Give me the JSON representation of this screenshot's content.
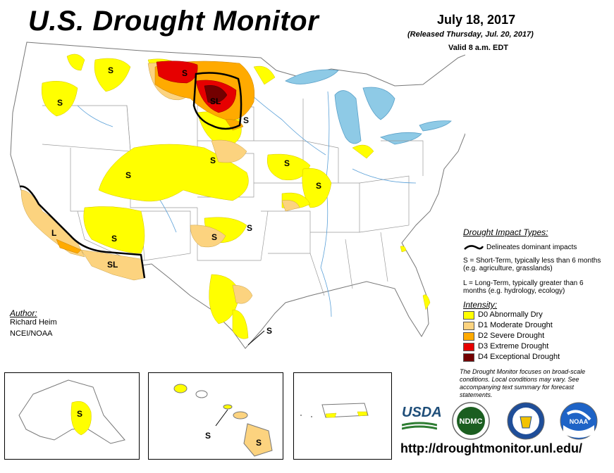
{
  "title": "U.S. Drought Monitor",
  "date": "July 18, 2017",
  "released": "(Released Thursday, Jul. 20, 2017)",
  "valid": "Valid 8 a.m. EDT",
  "author": {
    "heading": "Author:",
    "name": "Richard Heim",
    "org": "NCEI/NOAA"
  },
  "impact_types": {
    "heading": "Drought Impact Types:",
    "delineates": "Delineates dominant impacts",
    "short_term": "S = Short-Term, typically less than 6 months (e.g. agriculture, grasslands)",
    "long_term": "L = Long-Term, typically greater than 6 months (e.g. hydrology, ecology)"
  },
  "intensity": {
    "heading": "Intensity:",
    "levels": [
      {
        "label": "D0 Abnormally Dry",
        "color": "#ffff00"
      },
      {
        "label": "D1 Moderate Drought",
        "color": "#fcd37f"
      },
      {
        "label": "D2 Severe Drought",
        "color": "#ffaa00"
      },
      {
        "label": "D3 Extreme Drought",
        "color": "#e60000"
      },
      {
        "label": "D4 Exceptional Drought",
        "color": "#730000"
      }
    ]
  },
  "note": "The Drought Monitor focuses on broad-scale conditions. Local conditions may vary. See accompanying text summary for forecast statements.",
  "url": "http://droughtmonitor.unl.edu/",
  "logos": {
    "usda": "USDA",
    "ndmc": "NDMC",
    "noaa": "NOAA"
  },
  "map_labels": {
    "s": "S",
    "l": "L",
    "sl": "SL"
  },
  "colors": {
    "water": "#8ecae6",
    "state_border": "#9a9a9a",
    "outline": "#000000",
    "title": "#000000"
  }
}
